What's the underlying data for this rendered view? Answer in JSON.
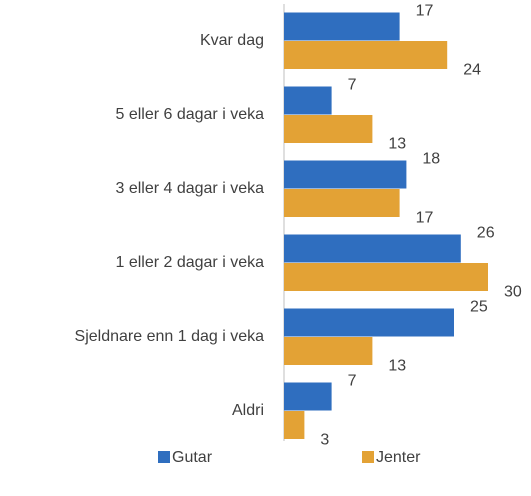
{
  "chart_data": {
    "type": "bar",
    "orientation": "horizontal",
    "categories": [
      "Kvar dag",
      "5 eller 6 dagar i veka",
      "3 eller 4 dagar i veka",
      "1 eller 2 dagar i veka",
      "Sjeldnare enn 1 dag i veka",
      "Aldri"
    ],
    "series": [
      {
        "name": "Gutar",
        "color": "#2f6ebf",
        "values": [
          17,
          7,
          18,
          26,
          25,
          7
        ]
      },
      {
        "name": "Jenter",
        "color": "#e3a235",
        "values": [
          24,
          13,
          17,
          30,
          13,
          3
        ]
      }
    ],
    "legend": "bottom"
  }
}
